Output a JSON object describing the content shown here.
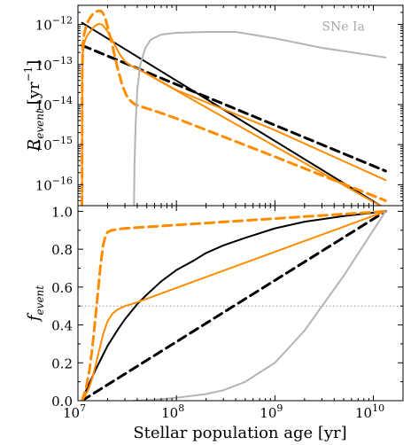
{
  "chart_data": [
    {
      "type": "line",
      "panel": "top",
      "xscale": "log",
      "yscale": "log",
      "xlim": [
        10000000.0,
        20000000000.0
      ],
      "ylim": [
        3e-17,
        3e-12
      ],
      "ylabel": "R_event [yr^-1]",
      "ylabel_main": "R",
      "ylabel_sub": "event",
      "ylabel_unit": "[yr",
      "ylabel_exp": "−1",
      "ylabel_close": "]",
      "yticks": [
        {
          "value": 1e-12,
          "base": "10",
          "exp": "−12"
        },
        {
          "value": 1e-13,
          "base": "10",
          "exp": "−13"
        },
        {
          "value": 1e-14,
          "base": "10",
          "exp": "−14"
        },
        {
          "value": 1e-15,
          "base": "10",
          "exp": "−15"
        },
        {
          "value": 1e-16,
          "base": "10",
          "exp": "−16"
        }
      ],
      "annotations": [
        {
          "text": "SNe Ia",
          "color": "#aaaaaa",
          "x": 3000000000.0,
          "y": 7e-13
        }
      ],
      "series": [
        {
          "color": "#000000",
          "dash": false,
          "x": [
            11000000.0,
            13300000000.0
          ],
          "y": [
            1.1e-12,
            2.5e-17
          ]
        },
        {
          "color": "#000000",
          "dash": true,
          "x": [
            11000000.0,
            13300000000.0
          ],
          "y": [
            3e-13,
            2.2e-16
          ]
        },
        {
          "color": "#ff8c00",
          "dash": false,
          "x": [
            11000000.0,
            11050000.0,
            11200000.0,
            11600000.0,
            12200000.0,
            13000000.0,
            14000000.0,
            15000000.0,
            16200000.0,
            17500000.0,
            19000000.0,
            21000000.0,
            23500000.0,
            26500000.0,
            30000000.0,
            34000000.0,
            40000000.0,
            100000000.0,
            1000000000.0,
            13300000000.0
          ],
          "y": [
            3e-17,
            5e-14,
            2e-13,
            3.5e-13,
            4.8e-13,
            6.2e-13,
            7.8e-13,
            9.3e-13,
            1.03e-12,
            1e-12,
            8e-13,
            5.5e-13,
            3.2e-13,
            1.8e-13,
            1.2e-13,
            9.5e-14,
            8e-14,
            2.3e-14,
            2.3e-15,
            1.3e-16
          ]
        },
        {
          "color": "#ff8c00",
          "dash": false,
          "x": [
            40000000.0,
            13300000000.0
          ],
          "y": [
            8e-14,
            2.5e-17
          ]
        },
        {
          "color": "#ff8c00",
          "dash": true,
          "x": [
            11000000.0,
            11050000.0,
            11200000.0,
            11600000.0,
            12200000.0,
            13000000.0,
            14000000.0,
            15000000.0,
            16200000.0,
            17200000.0,
            18000000.0,
            19000000.0,
            20500000.0,
            22500000.0,
            25000000.0,
            28000000.0,
            31000000.0,
            34000000.0,
            38000000.0,
            45000000.0,
            60000000.0,
            100000000.0,
            1000000000.0,
            13300000000.0
          ],
          "y": [
            3e-17,
            6e-14,
            3e-13,
            6e-13,
            9.5e-13,
            1.35e-12,
            1.75e-12,
            2.05e-12,
            2.2e-12,
            2.15e-12,
            1.9e-12,
            1.4e-12,
            7e-13,
            2.8e-13,
            9e-14,
            3.2e-14,
            1.7e-14,
            1.25e-14,
            1e-14,
            8.7e-15,
            7e-15,
            4.5e-15,
            5e-16,
            4e-17
          ]
        },
        {
          "color": "#b4b4b4",
          "dash": false,
          "x": [
            37000000.0,
            37500000.0,
            38500000.0,
            40000000.0,
            43000000.0,
            48000000.0,
            55000000.0,
            70000000.0,
            100000000.0,
            200000000.0,
            400000000.0,
            1000000000.0,
            3000000000.0,
            13300000000.0
          ],
          "y": [
            2e-17,
            3e-16,
            3e-15,
            2.3e-14,
            1e-13,
            2.5e-13,
            4.2e-13,
            5.6e-13,
            6.2e-13,
            6.5e-13,
            6.5e-13,
            4.5e-13,
            2.6e-13,
            1.5e-13
          ]
        }
      ]
    },
    {
      "type": "line",
      "panel": "bottom",
      "xscale": "log",
      "xlim": [
        10000000.0,
        20000000000.0
      ],
      "ylim": [
        0.0,
        1.03
      ],
      "xlabel": "Stellar population age [yr]",
      "ylabel_main": "f",
      "ylabel_sub": "event",
      "yticks": [
        "0.0",
        "0.2",
        "0.4",
        "0.6",
        "0.8",
        "1.0"
      ],
      "xticks": [
        {
          "value": 10000000.0,
          "base": "10",
          "exp": "7"
        },
        {
          "value": 100000000.0,
          "base": "10",
          "exp": "8"
        },
        {
          "value": 1000000000.0,
          "base": "10",
          "exp": "9"
        },
        {
          "value": 10000000000.0,
          "base": "10",
          "exp": "10"
        }
      ],
      "reference_lines": [
        {
          "y": 0.5,
          "color": "#999999",
          "style": "dotted"
        }
      ],
      "series": [
        {
          "color": "#000000",
          "dash": false,
          "x": [
            11000000.0,
            12000000.0,
            13000000.0,
            15000000.0,
            17500000.0,
            20000000.0,
            25000000.0,
            30000000.0,
            40000000.0,
            50000000.0,
            70000000.0,
            100000000.0,
            150000000.0,
            200000000.0,
            300000000.0,
            500000000.0,
            1000000000.0,
            2000000000.0,
            5000000000.0,
            13300000000.0
          ],
          "y": [
            0.0,
            0.05,
            0.09,
            0.16,
            0.23,
            0.29,
            0.37,
            0.43,
            0.51,
            0.56,
            0.63,
            0.69,
            0.74,
            0.78,
            0.82,
            0.86,
            0.91,
            0.945,
            0.975,
            1.0
          ]
        },
        {
          "color": "#000000",
          "dash": true,
          "x": [
            11000000.0,
            13300000000.0
          ],
          "y": [
            0.0,
            1.0
          ]
        },
        {
          "color": "#ff8c00",
          "dash": false,
          "x": [
            11000000.0,
            12000000.0,
            13000000.0,
            14000000.0,
            15000000.0,
            16500000.0,
            18000000.0,
            20000000.0,
            22500000.0,
            25000000.0,
            30000000.0,
            35000000.0,
            40000000.0,
            13300000000.0
          ],
          "y": [
            0.0,
            0.03,
            0.07,
            0.12,
            0.18,
            0.27,
            0.35,
            0.42,
            0.46,
            0.48,
            0.5,
            0.51,
            0.52,
            1.0
          ]
        },
        {
          "color": "#ff8c00",
          "dash": true,
          "x": [
            11000000.0,
            12000000.0,
            13000000.0,
            14000000.0,
            15000000.0,
            16000000.0,
            17000000.0,
            18000000.0,
            19000000.0,
            20000000.0,
            22000000.0,
            25000000.0,
            30000000.0,
            13300000000.0
          ],
          "y": [
            0.0,
            0.06,
            0.15,
            0.28,
            0.43,
            0.58,
            0.72,
            0.82,
            0.87,
            0.89,
            0.9,
            0.905,
            0.91,
            1.0
          ]
        },
        {
          "color": "#b4b4b4",
          "dash": false,
          "x": [
            37000000.0,
            50000000.0,
            70000000.0,
            100000000.0,
            200000000.0,
            300000000.0,
            500000000.0,
            1000000000.0,
            2000000000.0,
            5000000000.0,
            13300000000.0
          ],
          "y": [
            0.0,
            0.003,
            0.008,
            0.015,
            0.035,
            0.055,
            0.1,
            0.2,
            0.37,
            0.66,
            1.0
          ]
        }
      ]
    }
  ]
}
